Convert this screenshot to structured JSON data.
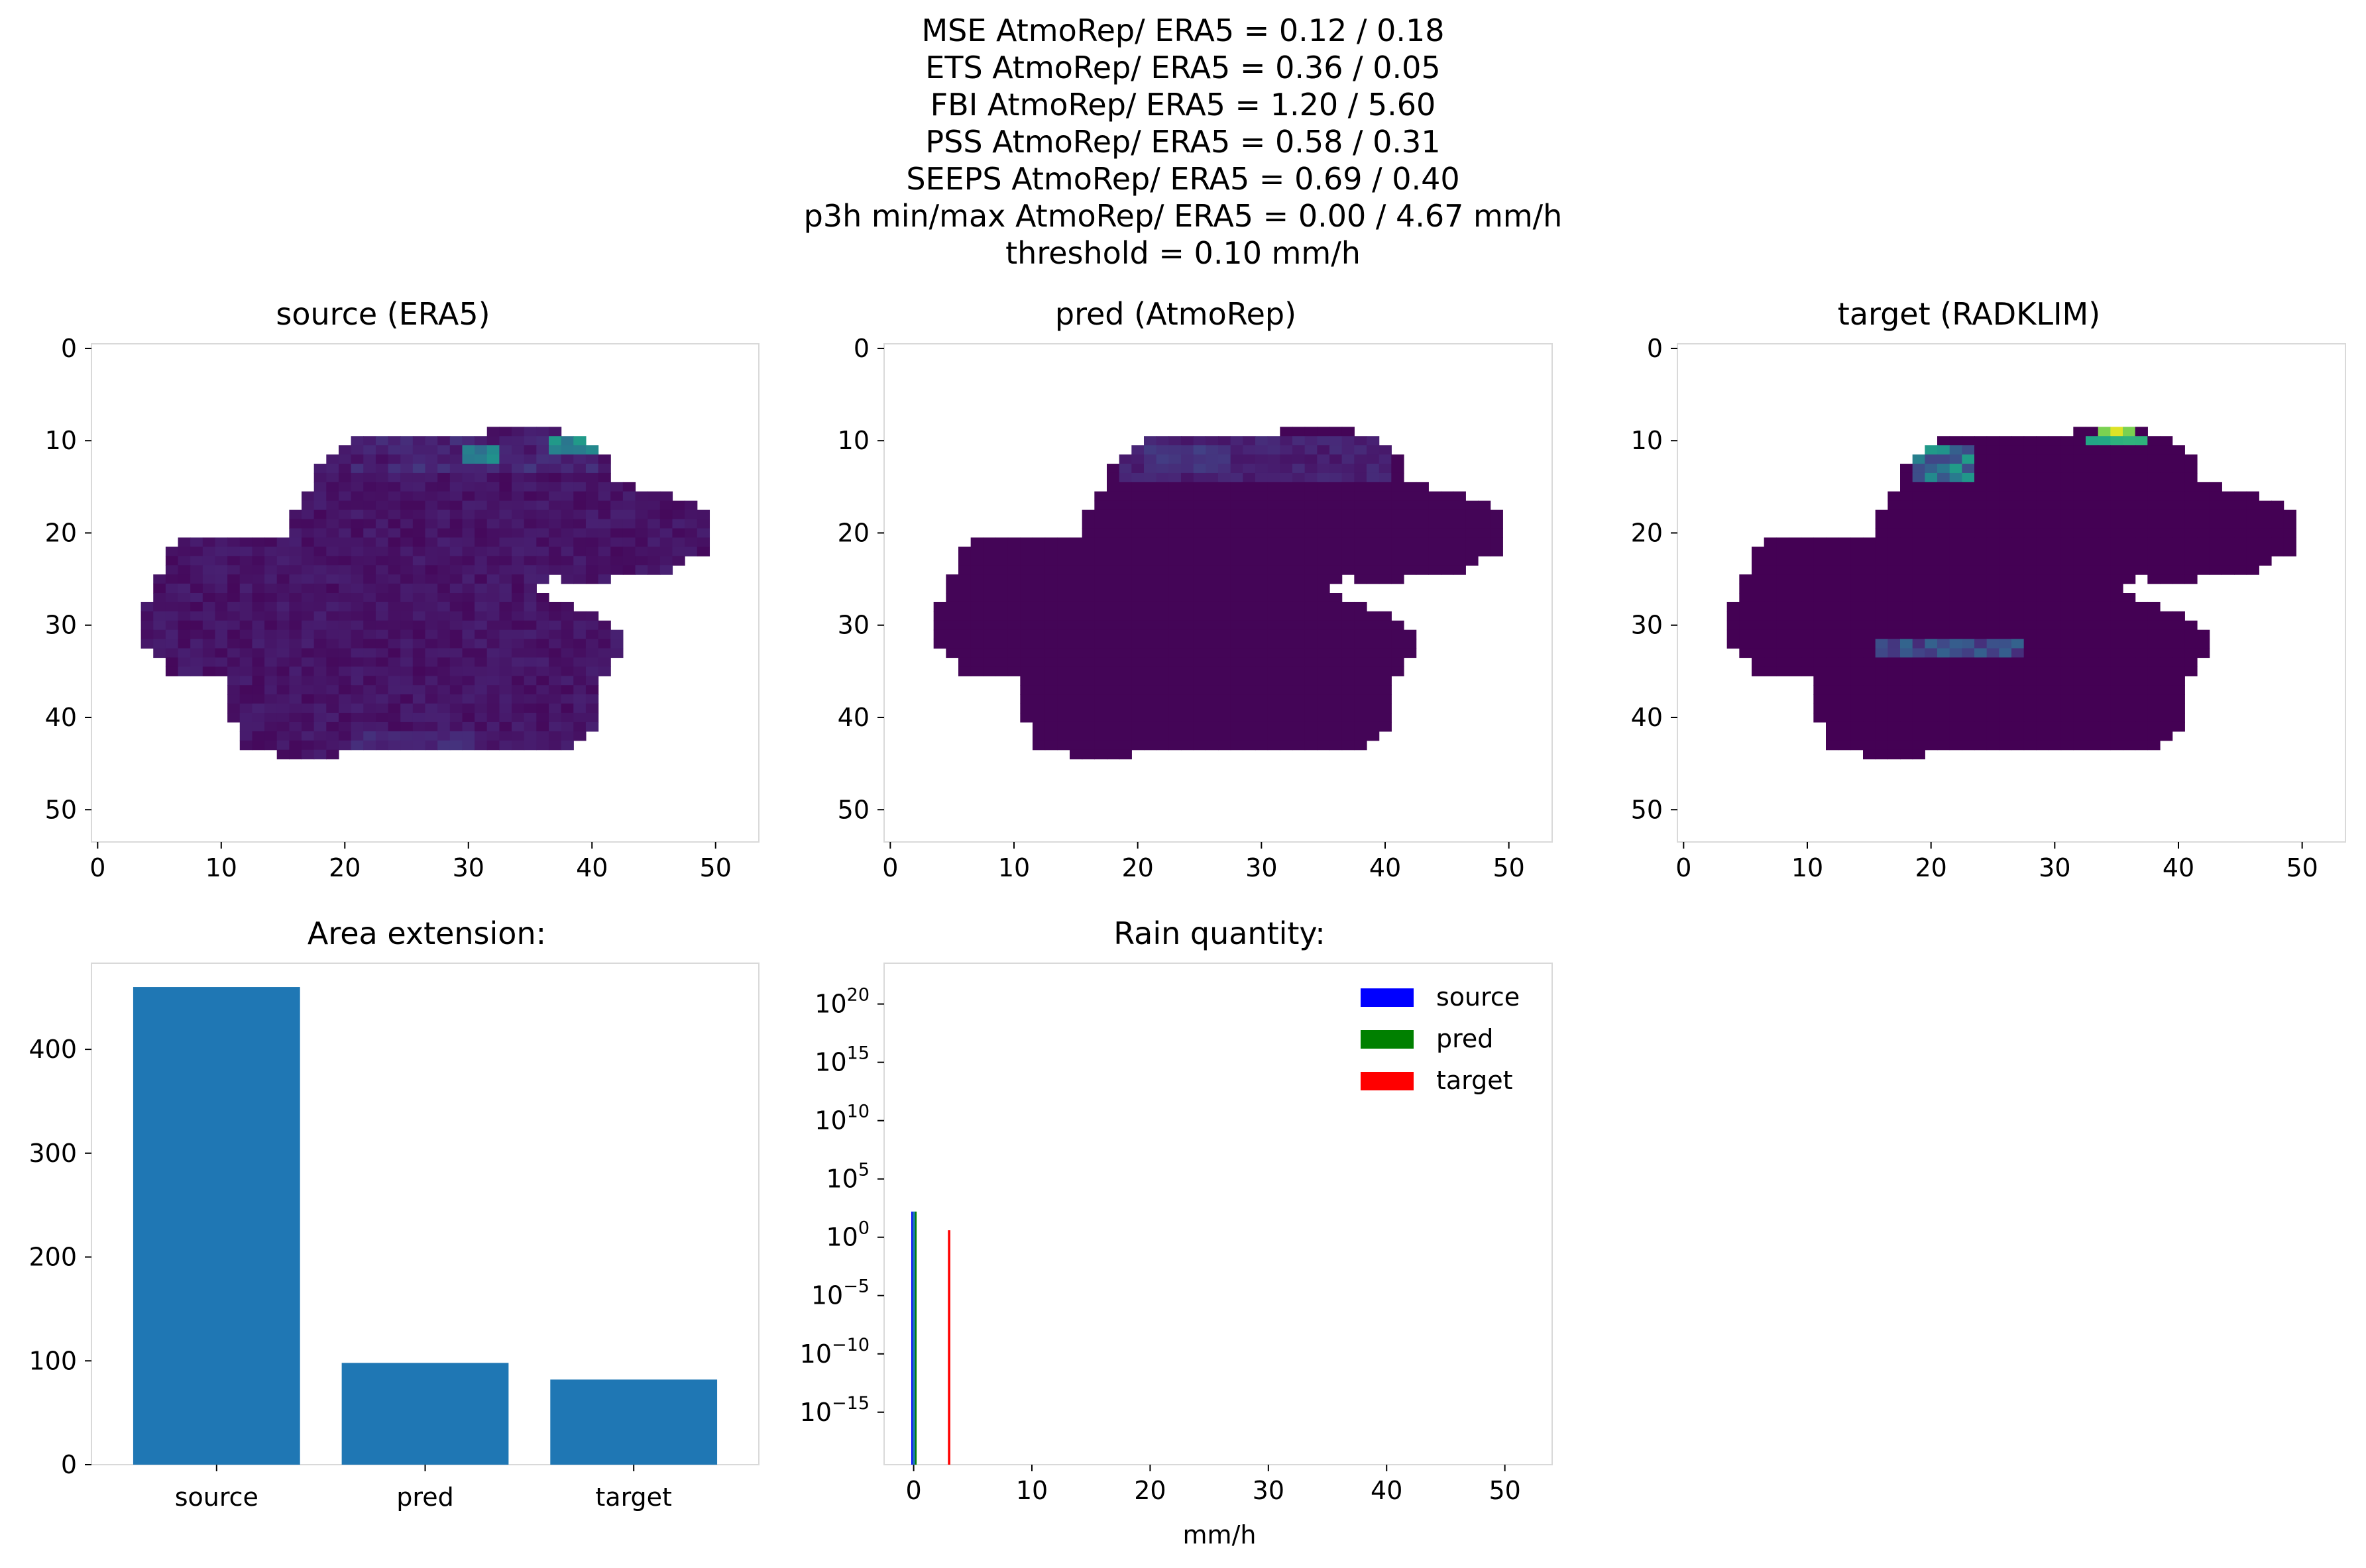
{
  "suptitle_lines": [
    "MSE AtmoRep/ ERA5 = 0.12 / 0.18",
    "ETS AtmoRep/ ERA5 = 0.36 / 0.05",
    "FBI AtmoRep/ ERA5 = 1.20 / 5.60",
    "PSS AtmoRep/ ERA5 = 0.58 / 0.31",
    "SEEPS AtmoRep/ ERA5 = 0.69 / 0.40",
    "p3h min/max AtmoRep/ ERA5 = 0.00 / 4.67 mm/h",
    "threshold = 0.10 mm/h"
  ],
  "colors": {
    "viridis_low": "#440154",
    "mask_dark": "#46075a",
    "bar": "#1f77b4",
    "source": "#0000ff",
    "pred": "#008000",
    "target": "#ff0000",
    "spine": "#d9d9d9"
  },
  "chart_data": [
    {
      "type": "heatmap",
      "title": "source (ERA5)",
      "xticks": [
        "0",
        "10",
        "20",
        "30",
        "40",
        "50"
      ],
      "yticks": [
        "0",
        "10",
        "20",
        "30",
        "40",
        "50"
      ],
      "xlim": [
        -0.5,
        53.5
      ],
      "ylim": [
        53.5,
        -0.5
      ],
      "colormap": "viridis",
      "grid": false
    },
    {
      "type": "heatmap",
      "title": "pred (AtmoRep)",
      "xticks": [
        "0",
        "10",
        "20",
        "30",
        "40",
        "50"
      ],
      "yticks": [
        "0",
        "10",
        "20",
        "30",
        "40",
        "50"
      ],
      "xlim": [
        -0.5,
        53.5
      ],
      "ylim": [
        53.5,
        -0.5
      ],
      "colormap": "viridis",
      "grid": false
    },
    {
      "type": "heatmap",
      "title": "target (RADKLIM)",
      "xticks": [
        "0",
        "10",
        "20",
        "30",
        "40",
        "50"
      ],
      "yticks": [
        "0",
        "10",
        "20",
        "30",
        "40",
        "50"
      ],
      "xlim": [
        -0.5,
        53.5
      ],
      "ylim": [
        53.5,
        -0.5
      ],
      "colormap": "viridis",
      "grid": false
    },
    {
      "type": "bar",
      "title": "Area extension:",
      "categories": [
        "source",
        "pred",
        "target"
      ],
      "values": [
        460,
        98,
        82
      ],
      "yticks": [
        "0",
        "100",
        "200",
        "300",
        "400"
      ],
      "ylim": [
        0,
        483
      ],
      "grid": false
    },
    {
      "type": "bar",
      "title": "Rain quantity:",
      "xlabel": "mm/h",
      "xticks": [
        "0",
        "10",
        "20",
        "30",
        "40",
        "50"
      ],
      "xlim": [
        -2.5,
        54
      ],
      "yscale": "log",
      "ylim_log10": [
        -19.5,
        23.5
      ],
      "ytick_base": "10",
      "ytick_exponents": [
        "20",
        "15",
        "10",
        "5",
        "0",
        "−5",
        "−10",
        "−15"
      ],
      "legend_position": "top-right",
      "series": [
        {
          "name": "source",
          "bars": [
            {
              "x_from": -0.2,
              "x_to": 0.2,
              "log10_height": 2.2
            }
          ]
        },
        {
          "name": "pred",
          "bars": [
            {
              "x_from": -0.05,
              "x_to": 0.25,
              "log10_height": 2.2
            }
          ]
        },
        {
          "name": "target",
          "bars": [
            {
              "x_from": 2.9,
              "x_to": 3.1,
              "log10_height": 0.6
            }
          ]
        }
      ],
      "grid": false
    }
  ]
}
